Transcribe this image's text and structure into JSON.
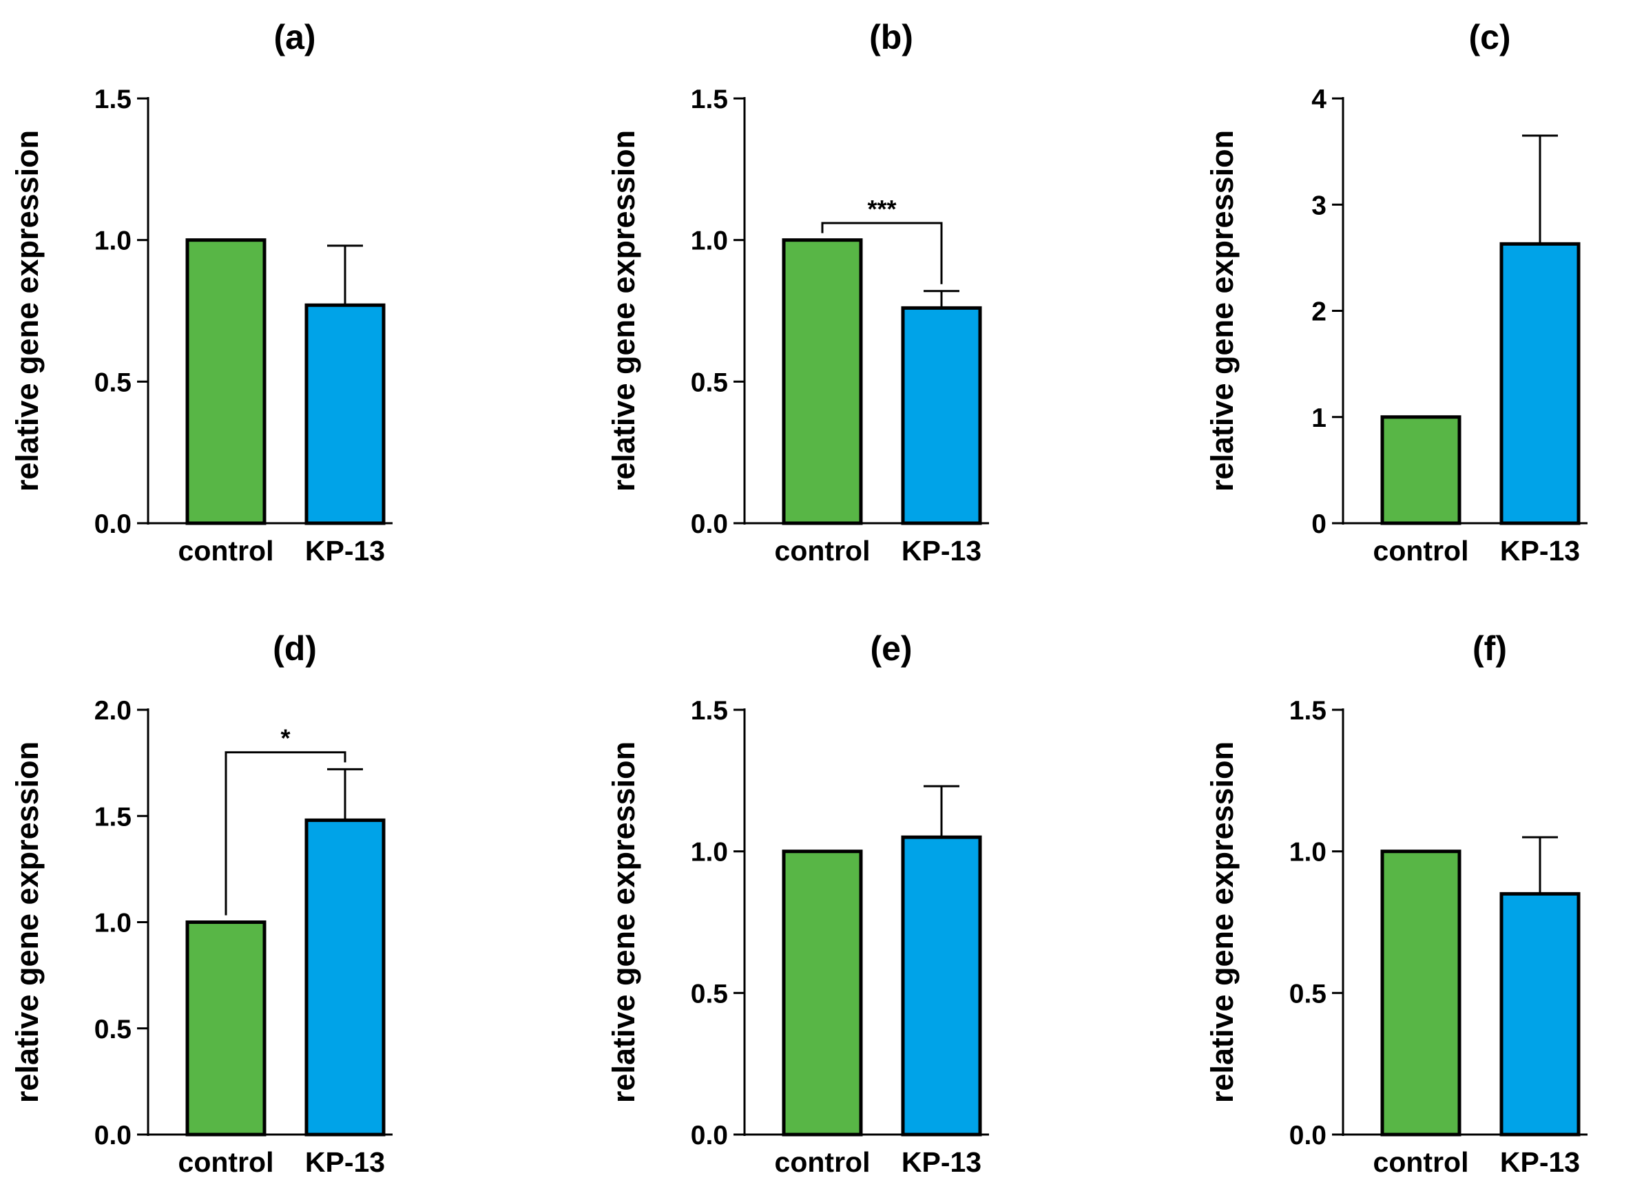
{
  "colors": {
    "control": "#58b646",
    "kp13": "#00a3e8",
    "stroke": "#000000"
  },
  "chart_data": [
    {
      "type": "bar",
      "title": "(a)",
      "xlabel": "",
      "ylabel": "relative gene expression",
      "categories": [
        "control",
        "KP-13"
      ],
      "values": [
        1.0,
        0.77
      ],
      "error_upper": [
        null,
        0.98
      ],
      "ylim": [
        0,
        1.5
      ],
      "ticks": [
        0.0,
        0.5,
        1.0,
        1.5
      ],
      "tick_labels": [
        "0.0",
        "0.5",
        "1.0",
        "1.5"
      ],
      "significance": null
    },
    {
      "type": "bar",
      "title": "(b)",
      "xlabel": "",
      "ylabel": "relative gene expression",
      "categories": [
        "control",
        "KP-13"
      ],
      "values": [
        1.0,
        0.76
      ],
      "error_upper": [
        null,
        0.82
      ],
      "ylim": [
        0,
        1.5
      ],
      "ticks": [
        0.0,
        0.5,
        1.0,
        1.5
      ],
      "tick_labels": [
        "0.0",
        "0.5",
        "1.0",
        "1.5"
      ],
      "significance": {
        "label": "***",
        "y": 1.06
      }
    },
    {
      "type": "bar",
      "title": "(c)",
      "xlabel": "",
      "ylabel": "relative gene expression",
      "categories": [
        "control",
        "KP-13"
      ],
      "values": [
        1.0,
        2.63
      ],
      "error_upper": [
        null,
        3.65
      ],
      "ylim": [
        0,
        4
      ],
      "ticks": [
        0,
        1,
        2,
        3,
        4
      ],
      "tick_labels": [
        "0",
        "1",
        "2",
        "3",
        "4"
      ],
      "significance": null
    },
    {
      "type": "bar",
      "title": "(d)",
      "xlabel": "",
      "ylabel": "relative gene expression",
      "categories": [
        "control",
        "KP-13"
      ],
      "values": [
        1.0,
        1.48
      ],
      "error_upper": [
        null,
        1.72
      ],
      "ylim": [
        0,
        2.0
      ],
      "ticks": [
        0.0,
        0.5,
        1.0,
        1.5,
        2.0
      ],
      "tick_labels": [
        "0.0",
        "0.5",
        "1.0",
        "1.5",
        "2.0"
      ],
      "significance": {
        "label": "*",
        "y": 1.8
      }
    },
    {
      "type": "bar",
      "title": "(e)",
      "xlabel": "",
      "ylabel": "relative gene expression",
      "categories": [
        "control",
        "KP-13"
      ],
      "values": [
        1.0,
        1.05
      ],
      "error_upper": [
        null,
        1.23
      ],
      "ylim": [
        0,
        1.5
      ],
      "ticks": [
        0.0,
        0.5,
        1.0,
        1.5
      ],
      "tick_labels": [
        "0.0",
        "0.5",
        "1.0",
        "1.5"
      ],
      "significance": null
    },
    {
      "type": "bar",
      "title": "(f)",
      "xlabel": "",
      "ylabel": "relative gene expression",
      "categories": [
        "control",
        "KP-13"
      ],
      "values": [
        1.0,
        0.85
      ],
      "error_upper": [
        null,
        1.05
      ],
      "ylim": [
        0,
        1.5
      ],
      "ticks": [
        0.0,
        0.5,
        1.0,
        1.5
      ],
      "tick_labels": [
        "0.0",
        "0.5",
        "1.0",
        "1.5"
      ],
      "significance": null
    }
  ]
}
